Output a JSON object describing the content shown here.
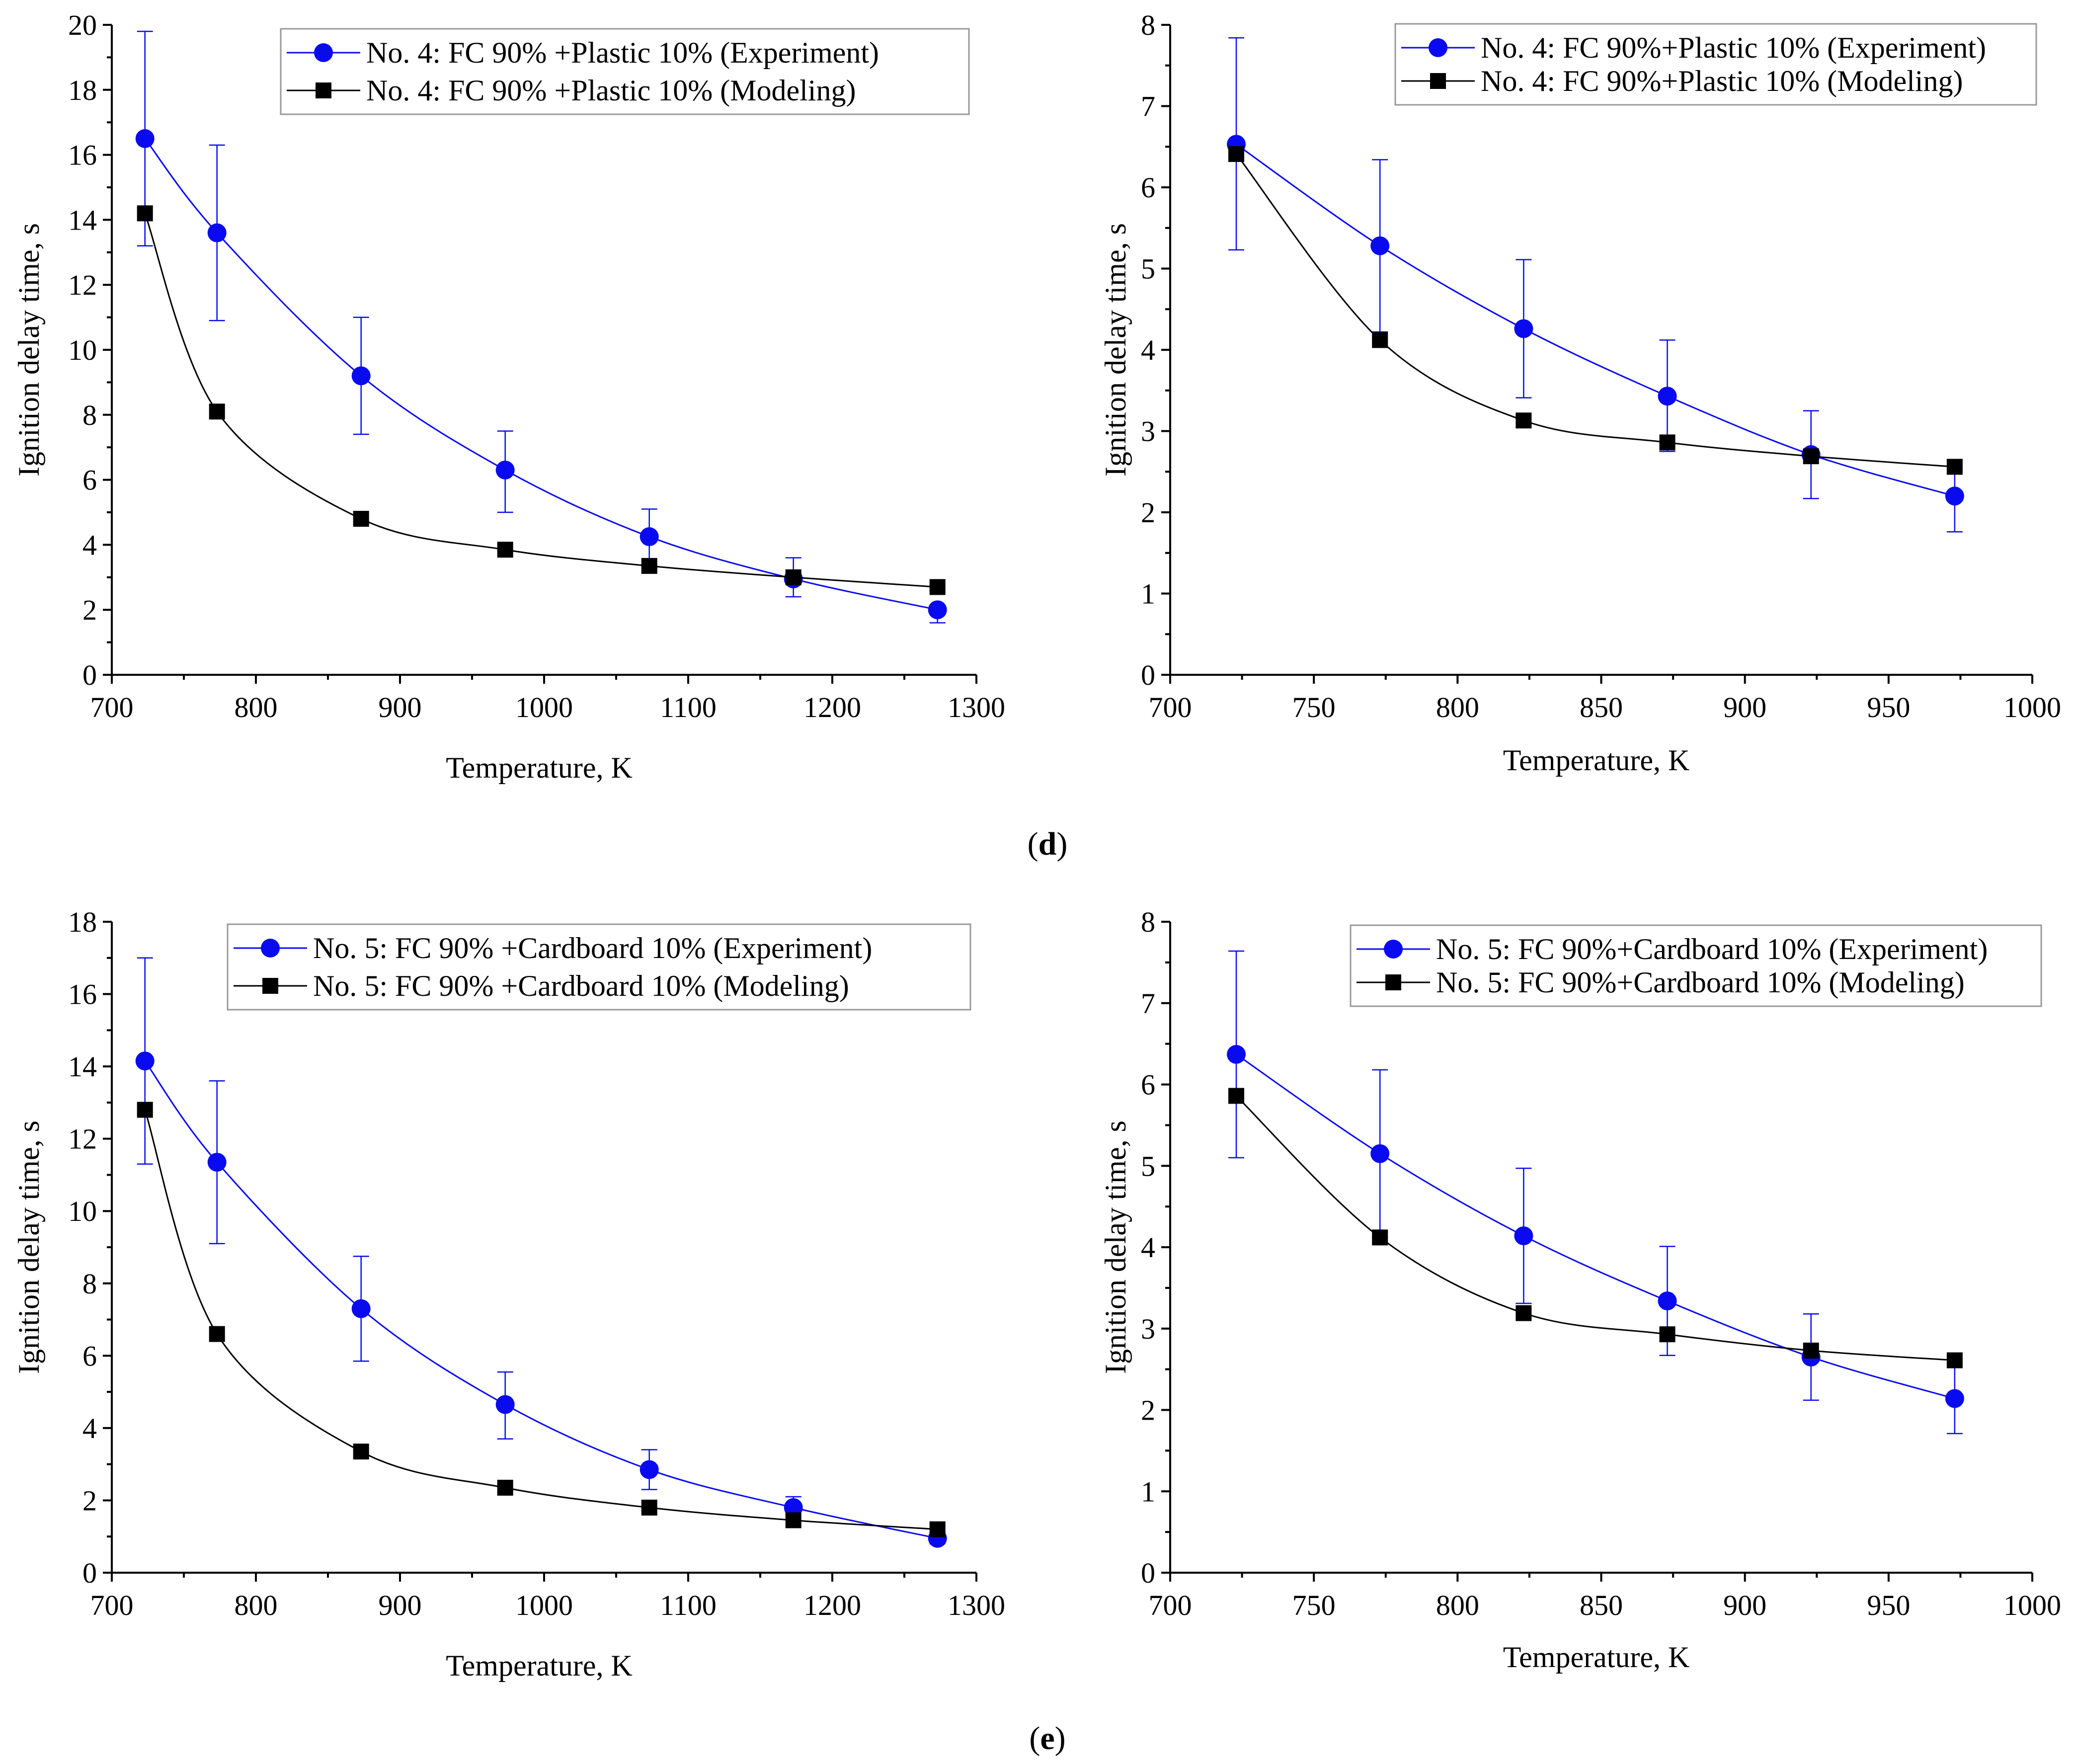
{
  "colors": {
    "experiment": "#0a0af0",
    "modeling": "#000000",
    "axis": "#000000"
  },
  "panel_labels": [
    "(d)",
    "(e)"
  ],
  "panel_letters": [
    {
      "open": "(",
      "letter": "d",
      "close": ")"
    },
    {
      "open": "(",
      "letter": "e",
      "close": ")"
    }
  ],
  "chart_data": [
    {
      "type": "line",
      "panel": "d-left",
      "xlabel": "Temperature, K",
      "ylabel": "Ignition delay time, s",
      "xlim": [
        700,
        1300
      ],
      "ylim": [
        0,
        20
      ],
      "xticks": [
        700,
        800,
        900,
        1000,
        1100,
        1200,
        1300
      ],
      "yticks": [
        0,
        2,
        4,
        6,
        8,
        10,
        12,
        14,
        16,
        18,
        20
      ],
      "legend_position": "top-right",
      "series": [
        {
          "name": "No. 4: FC 90% +Plastic 10% (Experiment)",
          "marker": "circle",
          "x": [
            723,
            773,
            873,
            973,
            1073,
            1173,
            1273
          ],
          "y": [
            16.5,
            13.6,
            9.2,
            6.3,
            4.25,
            2.95,
            2.0
          ],
          "err_low": [
            13.2,
            10.9,
            7.4,
            5.0,
            3.4,
            2.4,
            1.6
          ],
          "err_high": [
            19.8,
            16.3,
            11.0,
            7.5,
            5.1,
            3.6,
            2.0
          ]
        },
        {
          "name": "No. 4: FC 90% +Plastic 10% (Modeling)",
          "marker": "square",
          "x": [
            723,
            773,
            873,
            973,
            1073,
            1173,
            1273
          ],
          "y": [
            14.2,
            8.1,
            4.8,
            3.85,
            3.35,
            3.0,
            2.7
          ]
        }
      ]
    },
    {
      "type": "line",
      "panel": "d-right",
      "xlabel": "Temperature, K",
      "ylabel": "Ignition delay time, s",
      "xlim": [
        700,
        1000
      ],
      "ylim": [
        0,
        8
      ],
      "xticks": [
        700,
        750,
        800,
        850,
        900,
        950,
        1000
      ],
      "yticks": [
        0,
        1,
        2,
        3,
        4,
        5,
        6,
        7,
        8
      ],
      "legend_position": "top-right",
      "series": [
        {
          "name": "No. 4: FC 90%+Plastic 10% (Experiment)",
          "marker": "circle",
          "x": [
            723,
            773,
            823,
            873,
            923,
            973
          ],
          "y": [
            6.53,
            5.28,
            4.26,
            3.43,
            2.71,
            2.2
          ],
          "err_low": [
            5.23,
            4.22,
            3.41,
            2.75,
            2.17,
            1.76
          ],
          "err_high": [
            7.84,
            6.34,
            5.11,
            4.12,
            3.25,
            2.64
          ]
        },
        {
          "name": "No. 4: FC 90%+Plastic 10% (Modeling)",
          "marker": "square",
          "x": [
            723,
            773,
            823,
            873,
            923,
            973
          ],
          "y": [
            6.41,
            4.12,
            3.13,
            2.86,
            2.69,
            2.56
          ]
        }
      ]
    },
    {
      "type": "line",
      "panel": "e-left",
      "xlabel": "Temperature, K",
      "ylabel": "Ignition delay time, s",
      "xlim": [
        700,
        1300
      ],
      "ylim": [
        0,
        18
      ],
      "xticks": [
        700,
        800,
        900,
        1000,
        1100,
        1200,
        1300
      ],
      "yticks": [
        0,
        2,
        4,
        6,
        8,
        10,
        12,
        14,
        16,
        18
      ],
      "legend_position": "top-right",
      "series": [
        {
          "name": "No. 5: FC 90% +Cardboard 10% (Experiment)",
          "marker": "circle",
          "x": [
            723,
            773,
            873,
            973,
            1073,
            1173,
            1273
          ],
          "y": [
            14.15,
            11.35,
            7.3,
            4.65,
            2.85,
            1.8,
            0.95
          ],
          "err_low": [
            11.3,
            9.1,
            5.85,
            3.7,
            2.3,
            1.45,
            0.8
          ],
          "err_high": [
            17.0,
            13.6,
            8.75,
            5.55,
            3.4,
            2.1,
            1.1
          ]
        },
        {
          "name": "No. 5: FC 90% +Cardboard 10% (Modeling)",
          "marker": "square",
          "x": [
            723,
            773,
            873,
            973,
            1073,
            1173,
            1273
          ],
          "y": [
            12.8,
            6.6,
            3.35,
            2.35,
            1.8,
            1.45,
            1.2
          ]
        }
      ]
    },
    {
      "type": "line",
      "panel": "e-right",
      "xlabel": "Temperature, K",
      "ylabel": "Ignition delay time, s",
      "xlim": [
        700,
        1000
      ],
      "ylim": [
        0,
        8
      ],
      "xticks": [
        700,
        750,
        800,
        850,
        900,
        950,
        1000
      ],
      "yticks": [
        0,
        1,
        2,
        3,
        4,
        5,
        6,
        7,
        8
      ],
      "legend_position": "top-right",
      "series": [
        {
          "name": "No. 5: FC 90%+Cardboard 10% (Experiment)",
          "marker": "circle",
          "x": [
            723,
            773,
            823,
            873,
            923,
            973
          ],
          "y": [
            6.37,
            5.15,
            4.14,
            3.34,
            2.65,
            2.14
          ],
          "err_low": [
            5.1,
            4.12,
            3.31,
            2.67,
            2.12,
            1.71
          ],
          "err_high": [
            7.64,
            6.18,
            4.97,
            4.01,
            3.18,
            2.57
          ]
        },
        {
          "name": "No. 5: FC 90%+Cardboard 10% (Modeling)",
          "marker": "square",
          "x": [
            723,
            773,
            823,
            873,
            923,
            973
          ],
          "y": [
            5.86,
            4.12,
            3.19,
            2.93,
            2.73,
            2.61
          ]
        }
      ]
    }
  ]
}
